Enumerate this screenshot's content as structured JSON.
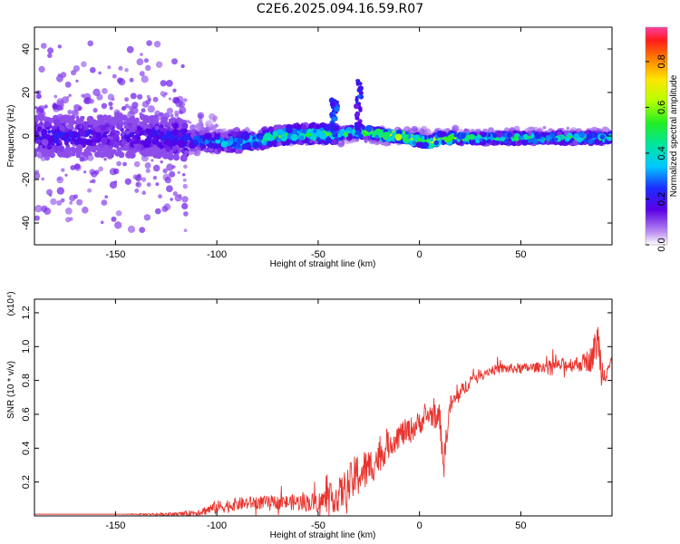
{
  "title": "C2E6.2025.094.16.59.R07",
  "chart_data": [
    {
      "type": "heatmap",
      "xlabel": "Height of straight line (km)",
      "ylabel": "Frequency (Hz)",
      "xlim": [
        -190,
        95
      ],
      "ylim": [
        -50,
        50
      ],
      "xticks": [
        "-150",
        "-100",
        "-50",
        "0",
        "50"
      ],
      "xtick_values": [
        -150,
        -100,
        -50,
        0,
        50
      ],
      "yticks": [
        "-40",
        "-20",
        "0",
        "20",
        "40"
      ],
      "ytick_values": [
        -40,
        -20,
        0,
        20,
        40
      ],
      "colorbar": {
        "label": "Normalized spectral amplitude",
        "range": [
          0,
          0.95
        ],
        "ticks": [
          "0.0",
          "0.2",
          "0.4",
          "0.6",
          "0.8"
        ],
        "tick_values": [
          0.0,
          0.2,
          0.4,
          0.6,
          0.8
        ]
      },
      "ridge": {
        "x": [
          -190,
          -170,
          -150,
          -130,
          -115,
          -100,
          -90,
          -80,
          -70,
          -60,
          -50,
          -40,
          -30,
          -20,
          -15,
          -10,
          -5,
          0,
          5,
          10,
          20,
          40,
          60,
          80,
          95
        ],
        "freq": [
          0,
          0,
          0,
          0,
          -2,
          -3,
          -3,
          -2,
          0,
          1,
          1,
          1,
          2,
          1,
          0,
          0,
          -1,
          -2,
          -3,
          -1,
          -1,
          -1,
          -1,
          -1,
          -1
        ],
        "amplitude": [
          0.25,
          0.25,
          0.2,
          0.25,
          0.3,
          0.4,
          0.45,
          0.5,
          0.55,
          0.55,
          0.6,
          0.6,
          0.75,
          0.85,
          0.9,
          0.8,
          0.8,
          0.75,
          0.85,
          0.9,
          0.6,
          0.55,
          0.55,
          0.6,
          0.55
        ]
      },
      "spikes": [
        {
          "x": -42,
          "freq_top": 17,
          "amplitude": 0.3
        },
        {
          "x": -30,
          "freq_top": 26,
          "amplitude": 0.25
        }
      ]
    },
    {
      "type": "line",
      "xlabel": "Height of straight line (km)",
      "ylabel": "SNR (10 * v/v)",
      "y_multiplier": "(x10⁴)",
      "xlim": [
        -190,
        95
      ],
      "ylim": [
        0,
        1.28
      ],
      "xticks": [
        "-150",
        "-100",
        "-50",
        "0",
        "50"
      ],
      "xtick_values": [
        -150,
        -100,
        -50,
        0,
        50
      ],
      "yticks": [
        "0.2",
        "0.4",
        "0.6",
        "0.8",
        "1.0",
        "1.2"
      ],
      "ytick_values": [
        0.2,
        0.4,
        0.6,
        0.8,
        1.0,
        1.2
      ],
      "color": "#e8332d",
      "series": [
        {
          "x": [
            -190,
            -150,
            -120,
            -110,
            -100,
            -90,
            -80,
            -70,
            -60,
            -50,
            -40,
            -35,
            -30,
            -25,
            -20,
            -15,
            -10,
            -5,
            0,
            5,
            10,
            12,
            15,
            20,
            25,
            30,
            35,
            40,
            50,
            60,
            70,
            80,
            85,
            88,
            90,
            95
          ],
          "values": [
            0.01,
            0.01,
            0.01,
            0.02,
            0.05,
            0.07,
            0.08,
            0.08,
            0.08,
            0.08,
            0.12,
            0.18,
            0.25,
            0.28,
            0.35,
            0.42,
            0.48,
            0.5,
            0.55,
            0.6,
            0.58,
            0.3,
            0.65,
            0.72,
            0.8,
            0.84,
            0.86,
            0.87,
            0.87,
            0.88,
            0.89,
            0.9,
            0.93,
            1.05,
            0.85,
            0.9
          ],
          "noise": [
            0.0,
            0.0,
            0.01,
            0.02,
            0.04,
            0.04,
            0.04,
            0.04,
            0.05,
            0.06,
            0.1,
            0.12,
            0.14,
            0.12,
            0.1,
            0.08,
            0.08,
            0.08,
            0.07,
            0.07,
            0.08,
            0.1,
            0.06,
            0.05,
            0.04,
            0.03,
            0.03,
            0.03,
            0.03,
            0.03,
            0.04,
            0.05,
            0.08,
            0.12,
            0.1,
            0.06
          ]
        }
      ]
    }
  ]
}
